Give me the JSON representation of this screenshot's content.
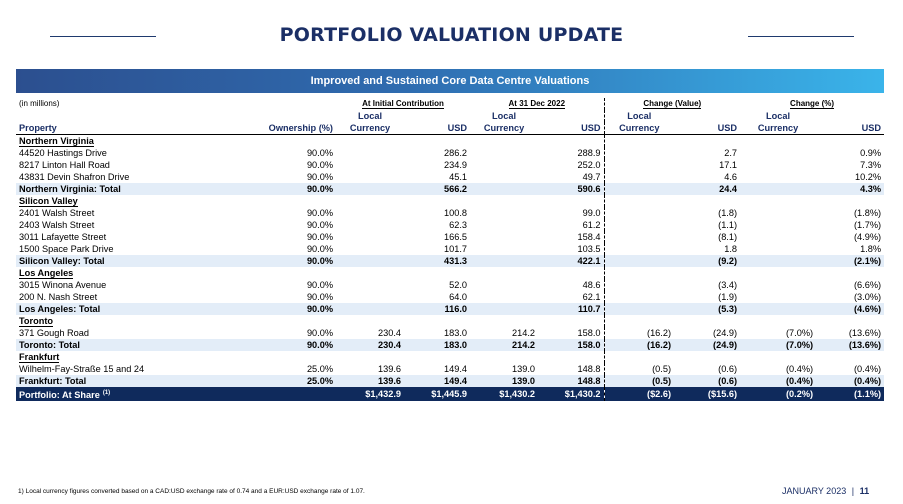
{
  "header": {
    "title": "PORTFOLIO VALUATION UPDATE",
    "banner": "Improved and Sustained Core Data Centre Valuations"
  },
  "table": {
    "in_millions": "(in millions)",
    "groups": {
      "initial": "At Initial Contribution",
      "dec2022": "At 31 Dec 2022",
      "change_value": "Change (Value)",
      "change_pct": "Change (%)"
    },
    "sub_local": "Local",
    "columns": {
      "property": "Property",
      "ownership": "Ownership (%)",
      "currency": "Currency",
      "usd": "USD"
    },
    "regions": [
      {
        "name": "Northern Virginia",
        "rows": [
          {
            "p": "44520 Hastings Drive",
            "o": "90.0%",
            "il": "",
            "iu": "286.2",
            "dl": "",
            "du": "288.9",
            "cvl": "",
            "cvu": "2.7",
            "cpl": "",
            "cpu": "0.9%"
          },
          {
            "p": "8217 Linton Hall Road",
            "o": "90.0%",
            "il": "",
            "iu": "234.9",
            "dl": "",
            "du": "252.0",
            "cvl": "",
            "cvu": "17.1",
            "cpl": "",
            "cpu": "7.3%"
          },
          {
            "p": "43831 Devin Shafron Drive",
            "o": "90.0%",
            "il": "",
            "iu": "45.1",
            "dl": "",
            "du": "49.7",
            "cvl": "",
            "cvu": "4.6",
            "cpl": "",
            "cpu": "10.2%"
          }
        ],
        "total": {
          "p": "Northern Virginia: Total",
          "o": "90.0%",
          "il": "",
          "iu": "566.2",
          "dl": "",
          "du": "590.6",
          "cvl": "",
          "cvu": "24.4",
          "cpl": "",
          "cpu": "4.3%"
        }
      },
      {
        "name": "Silicon Valley",
        "rows": [
          {
            "p": "2401 Walsh Street",
            "o": "90.0%",
            "il": "",
            "iu": "100.8",
            "dl": "",
            "du": "99.0",
            "cvl": "",
            "cvu": "(1.8)",
            "cpl": "",
            "cpu": "(1.8%)"
          },
          {
            "p": "2403 Walsh Street",
            "o": "90.0%",
            "il": "",
            "iu": "62.3",
            "dl": "",
            "du": "61.2",
            "cvl": "",
            "cvu": "(1.1)",
            "cpl": "",
            "cpu": "(1.7%)"
          },
          {
            "p": "3011 Lafayette Street",
            "o": "90.0%",
            "il": "",
            "iu": "166.5",
            "dl": "",
            "du": "158.4",
            "cvl": "",
            "cvu": "(8.1)",
            "cpl": "",
            "cpu": "(4.9%)"
          },
          {
            "p": "1500 Space Park Drive",
            "o": "90.0%",
            "il": "",
            "iu": "101.7",
            "dl": "",
            "du": "103.5",
            "cvl": "",
            "cvu": "1.8",
            "cpl": "",
            "cpu": "1.8%"
          }
        ],
        "total": {
          "p": "Silicon Valley: Total",
          "o": "90.0%",
          "il": "",
          "iu": "431.3",
          "dl": "",
          "du": "422.1",
          "cvl": "",
          "cvu": "(9.2)",
          "cpl": "",
          "cpu": "(2.1%)"
        }
      },
      {
        "name": "Los Angeles",
        "rows": [
          {
            "p": "3015 Winona Avenue",
            "o": "90.0%",
            "il": "",
            "iu": "52.0",
            "dl": "",
            "du": "48.6",
            "cvl": "",
            "cvu": "(3.4)",
            "cpl": "",
            "cpu": "(6.6%)"
          },
          {
            "p": "200 N. Nash Street",
            "o": "90.0%",
            "il": "",
            "iu": "64.0",
            "dl": "",
            "du": "62.1",
            "cvl": "",
            "cvu": "(1.9)",
            "cpl": "",
            "cpu": "(3.0%)"
          }
        ],
        "total": {
          "p": "Los Angeles: Total",
          "o": "90.0%",
          "il": "",
          "iu": "116.0",
          "dl": "",
          "du": "110.7",
          "cvl": "",
          "cvu": "(5.3)",
          "cpl": "",
          "cpu": "(4.6%)"
        }
      },
      {
        "name": "Toronto",
        "rows": [
          {
            "p": "371 Gough Road",
            "o": "90.0%",
            "il": "230.4",
            "iu": "183.0",
            "dl": "214.2",
            "du": "158.0",
            "cvl": "(16.2)",
            "cvu": "(24.9)",
            "cpl": "(7.0%)",
            "cpu": "(13.6%)"
          }
        ],
        "total": {
          "p": "Toronto: Total",
          "o": "90.0%",
          "il": "230.4",
          "iu": "183.0",
          "dl": "214.2",
          "du": "158.0",
          "cvl": "(16.2)",
          "cvu": "(24.9)",
          "cpl": "(7.0%)",
          "cpu": "(13.6%)"
        }
      },
      {
        "name": "Frankfurt",
        "rows": [
          {
            "p": "Wilhelm-Fay-Straße 15 and 24",
            "o": "25.0%",
            "il": "139.6",
            "iu": "149.4",
            "dl": "139.0",
            "du": "148.8",
            "cvl": "(0.5)",
            "cvu": "(0.6)",
            "cpl": "(0.4%)",
            "cpu": "(0.4%)"
          }
        ],
        "total": {
          "p": "Frankfurt: Total",
          "o": "25.0%",
          "il": "139.6",
          "iu": "149.4",
          "dl": "139.0",
          "du": "148.8",
          "cvl": "(0.5)",
          "cvu": "(0.6)",
          "cpl": "(0.4%)",
          "cpu": "(0.4%)"
        }
      }
    ],
    "grand_total": {
      "p": "Portfolio: At Share",
      "sup": "(1)",
      "o": "",
      "il": "$1,432.9",
      "iu": "$1,445.9",
      "dl": "$1,430.2",
      "du": "$1,430.2",
      "cvl": "($2.6)",
      "cvu": "($15.6)",
      "cpl": "(0.2%)",
      "cpu": "(1.1%)"
    }
  },
  "footer": {
    "footnote": "1)   Local currency figures converted based on a CAD:USD exchange rate of 0.74 and a EUR:USD exchange rate of 1.07.",
    "date": "JANUARY 2023",
    "sep": "|",
    "page": "11"
  },
  "colors": {
    "navy": "#1b2f66",
    "banner_start": "#2c4f8f",
    "banner_end": "#3ab4ea",
    "total_row_bg": "#e3edf8",
    "grand_total_bg": "#0f2a5c"
  }
}
